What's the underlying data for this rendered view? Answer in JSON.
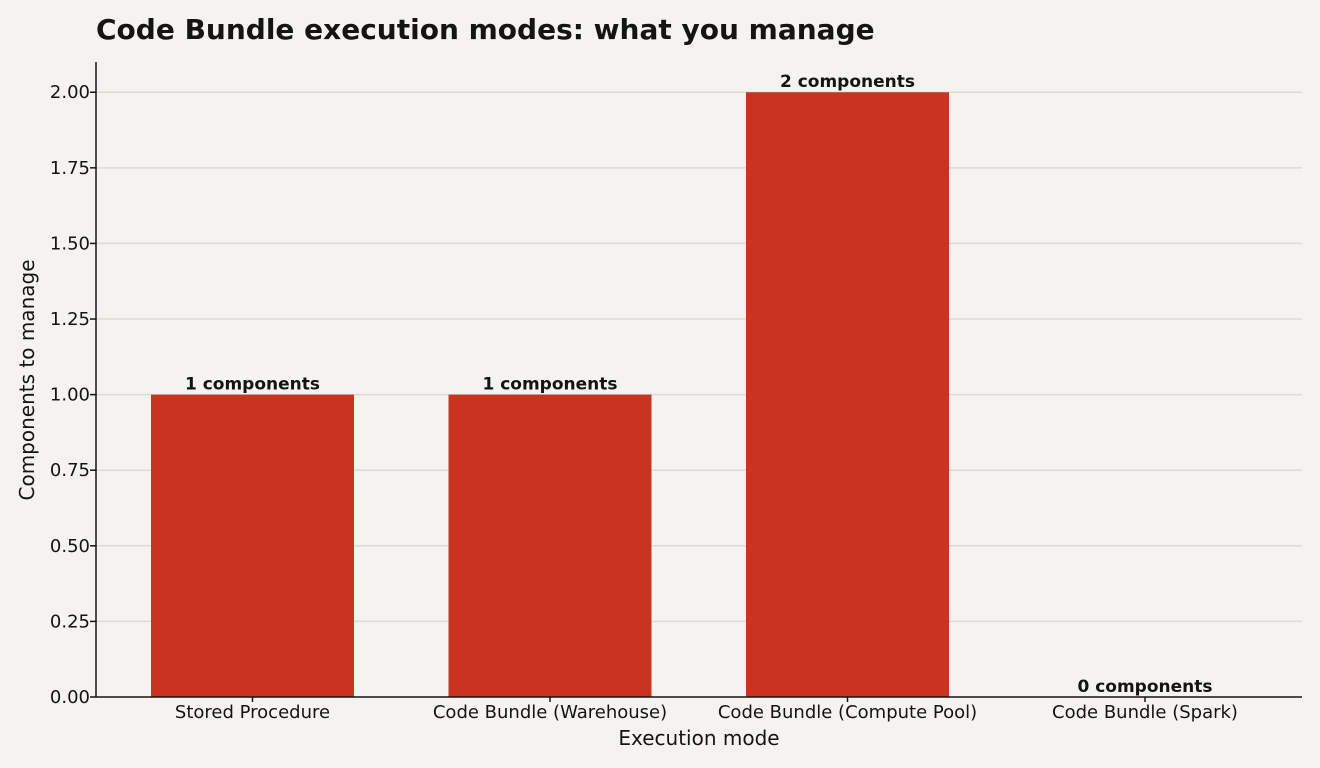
{
  "chart_data": {
    "type": "bar",
    "title": "Code Bundle execution modes: what you manage",
    "xlabel": "Execution mode",
    "ylabel": "Components to manage",
    "categories": [
      "Stored Procedure",
      "Code Bundle (Warehouse)",
      "Code Bundle (Compute Pool)",
      "Code Bundle (Spark)"
    ],
    "values": [
      1,
      1,
      2,
      0
    ],
    "data_labels": [
      "1 components",
      "1 components",
      "2 components",
      "0 components"
    ],
    "ylim": [
      0,
      2.1
    ],
    "yticks": [
      "0.00",
      "0.25",
      "0.50",
      "0.75",
      "1.00",
      "1.25",
      "1.50",
      "1.75",
      "2.00"
    ],
    "ytick_values": [
      0,
      0.25,
      0.5,
      0.75,
      1.0,
      1.25,
      1.5,
      1.75,
      2.0
    ],
    "grid": "horizontal",
    "bar_color": "#c93420",
    "background_color": "#f4f3ef"
  }
}
